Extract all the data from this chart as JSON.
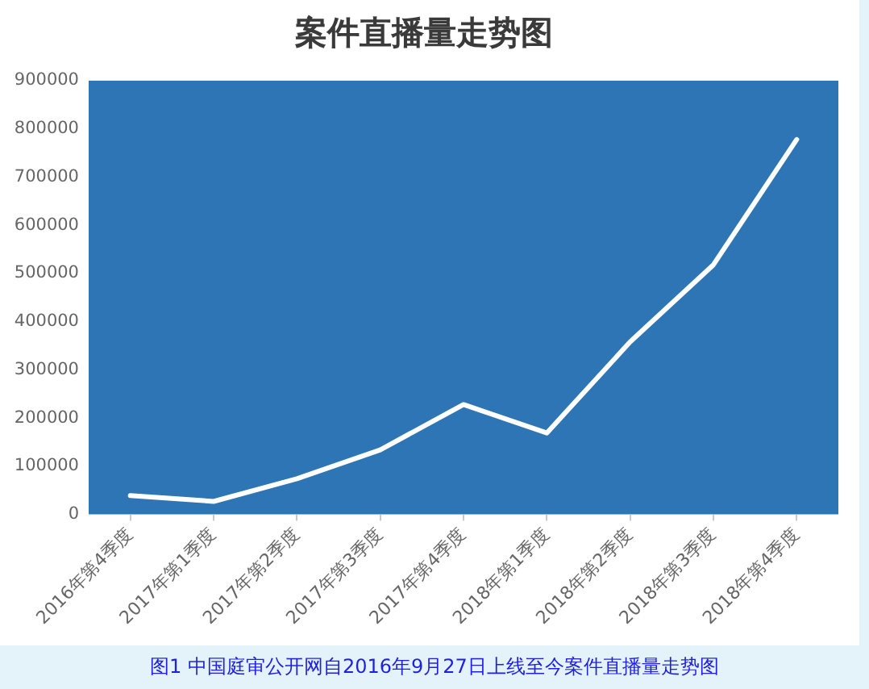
{
  "chart_data": {
    "type": "line",
    "title": "案件直播量走势图",
    "categories": [
      "2016年第4季度",
      "2017年第1季度",
      "2017年第2季度",
      "2017年第3季度",
      "2017年第4季度",
      "2018年第1季度",
      "2018年第2季度",
      "2018年第3季度",
      "2018年第4季度"
    ],
    "series": [
      {
        "color": "#ffffff",
        "values": [
          39000,
          27000,
          74000,
          134000,
          228000,
          169000,
          358000,
          518000,
          778000
        ]
      }
    ],
    "ylim": [
      0,
      900000
    ],
    "yticks": [
      0,
      100000,
      200000,
      300000,
      400000,
      500000,
      600000,
      700000,
      800000,
      900000
    ],
    "grid": false,
    "legend": false,
    "marker": "none",
    "annotations": [
      "图1 中国庭审公开网自2016年9月27日上线至今案件直播量走势图"
    ]
  }
}
